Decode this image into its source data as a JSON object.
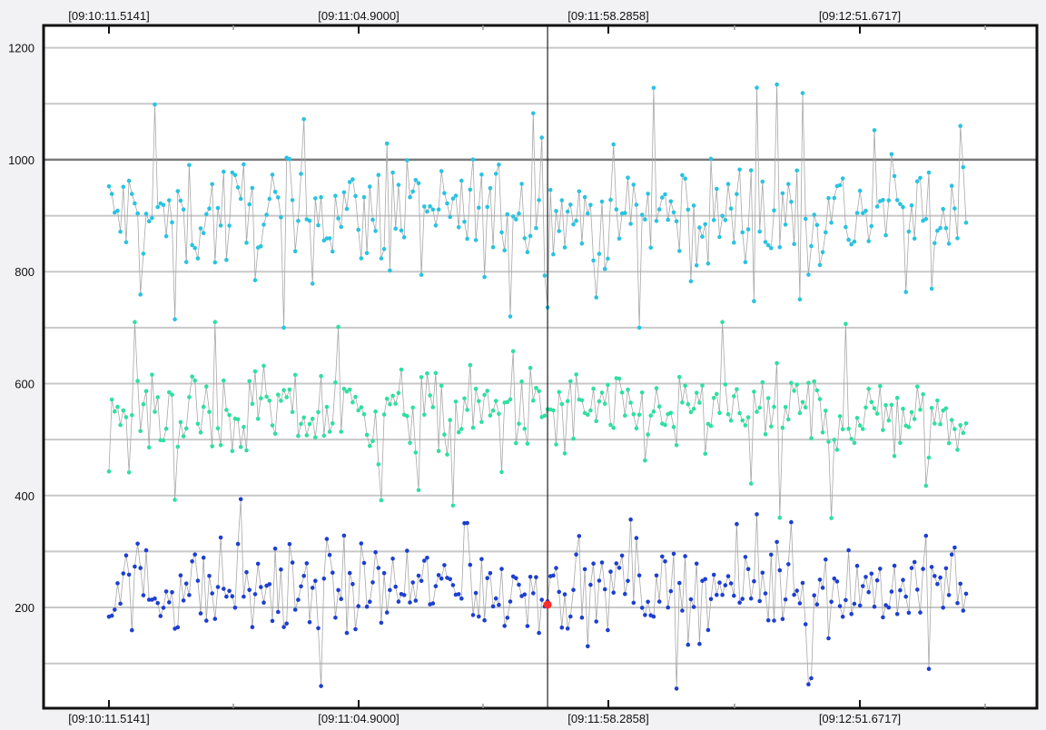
{
  "chart_data": {
    "type": "scatter",
    "title": "",
    "xlabel": "",
    "ylabel": "",
    "x_tick_labels": [
      "[09:10:11.5141]",
      "[09:11:04.9000]",
      "[09:11:58.2858]",
      "[09:12:51.6717]"
    ],
    "y_ticks": [
      200,
      400,
      600,
      800,
      1000,
      1200
    ],
    "ylim": [
      20,
      1240
    ],
    "xlim_seconds": [
      0,
      200
    ],
    "x_range_seconds": [
      0,
      162
    ],
    "grid": "horizontal",
    "cursor": {
      "x_seconds": 82.9,
      "value": 205,
      "marker_color": "#ff2a2a"
    },
    "series": [
      {
        "color": "#29c3e0",
        "center": 900,
        "spread": 70,
        "min": 700,
        "max": 1190,
        "points": 300
      },
      {
        "color": "#2ee0a0",
        "center": 545,
        "spread": 55,
        "min": 355,
        "max": 710,
        "points": 300
      },
      {
        "color": "#1d3fd0",
        "center": 235,
        "spread": 55,
        "min": 55,
        "max": 425,
        "points": 300
      }
    ],
    "line_color": "#a8a8a8"
  }
}
